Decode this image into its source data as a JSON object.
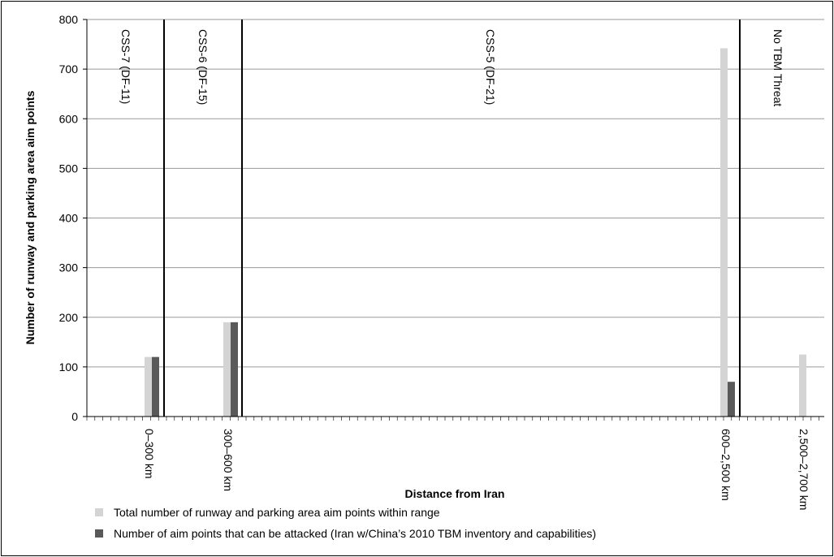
{
  "colors": {
    "total": "#d4d4d4",
    "attacked": "#595959",
    "grid": "#9a9a9a",
    "axis": "#000000"
  },
  "chart_data": {
    "type": "bar",
    "xlabel": "Distance from Iran",
    "ylabel": "Number of runway and parking area aim points",
    "ylim": [
      0,
      800
    ],
    "yticks": [
      "0",
      "100",
      "200",
      "300",
      "400",
      "500",
      "600",
      "700",
      "800"
    ],
    "grid": true,
    "legend_position": "bottom-left",
    "categories": [
      "0–300 km",
      "300–600 km",
      "600–2,500 km",
      "2,500–2,700 km"
    ],
    "series": [
      {
        "name": "Total number of runway and parking area aim points within range",
        "values": [
          120,
          190,
          742,
          125
        ]
      },
      {
        "name": "Number of aim points that can be attacked (Iran w/China’s 2010 TBM inventory and capabilities)",
        "values": [
          120,
          190,
          70,
          0
        ]
      }
    ],
    "zones": [
      "CSS-7 (DF-11)",
      "CSS-6 (DF-15)",
      "CSS-5 (DF-21)",
      "No TBM Threat"
    ]
  }
}
